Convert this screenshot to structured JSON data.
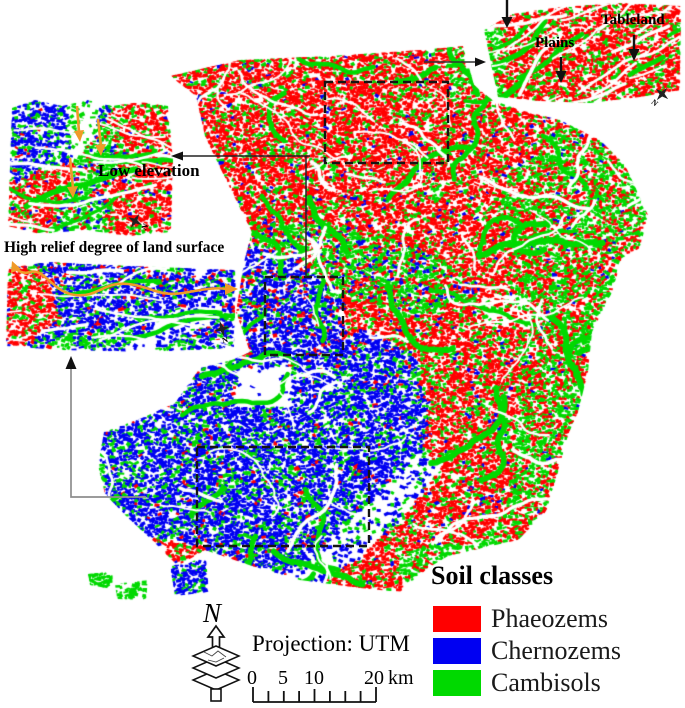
{
  "colors": {
    "phaeozems": "#ff0000",
    "chernozems": "#0000f2",
    "cambisols": "#00d900",
    "annotation": "#f09a28",
    "ink": "#111111",
    "connector_gray": "#8d8d8d"
  },
  "legend": {
    "title": "Soil classes",
    "items": [
      {
        "label": "Phaeozems",
        "color": "#ff0000"
      },
      {
        "label": "Chernozems",
        "color": "#0000f2"
      },
      {
        "label": "Cambisols",
        "color": "#00d900"
      }
    ]
  },
  "callouts": {
    "plains": "Plains",
    "tableland": "Tableland",
    "low_elevation": "Low elevation",
    "high_relief": "High relief degree of land surface"
  },
  "north": {
    "label": "N"
  },
  "inset_north_label": "N",
  "projection": {
    "label": "Projection: UTM"
  },
  "scalebar": {
    "ticks": [
      "0",
      "5",
      "10",
      "20"
    ],
    "unit": "km"
  },
  "map_render": {
    "seed": 11,
    "layers": [
      {
        "name": "main-map",
        "clip": [
          170,
          76,
          240,
          60,
          330,
          56,
          420,
          50,
          463,
          46,
          474,
          85,
          492,
          100,
          520,
          110,
          560,
          120,
          600,
          140,
          625,
          165,
          648,
          215,
          640,
          248,
          622,
          258,
          612,
          292,
          592,
          332,
          588,
          372,
          578,
          412,
          568,
          435,
          558,
          472,
          546,
          512,
          518,
          540,
          482,
          548,
          448,
          556,
          428,
          568,
          400,
          592,
          360,
          588,
          300,
          580,
          252,
          566,
          205,
          550,
          178,
          566,
          152,
          540,
          126,
          516,
          105,
          494,
          98,
          466,
          104,
          432,
          142,
          418,
          175,
          403,
          200,
          368,
          232,
          360,
          250,
          352,
          236,
          312,
          244,
          262,
          252,
          232,
          226,
          180,
          205,
          136,
          196,
          96
        ],
        "zones": [
          {
            "mix": [
              [
                "phaeozems",
                0.58
              ],
              [
                "cambisols",
                0.17
              ],
              [
                "white",
                0.22
              ],
              [
                "chernozems",
                0.03
              ]
            ]
          },
          {
            "poly": [
              448,
              44,
              466,
              48,
              474,
              86,
              452,
              100
            ],
            "mix": [
              [
                "cambisols",
                0.55
              ],
              [
                "phaeozems",
                0.25
              ],
              [
                "white",
                0.2
              ]
            ]
          },
          {
            "poly": [
              548,
              125,
              600,
              142,
              625,
              165,
              648,
              215,
              640,
              248,
              622,
              258,
              612,
              292,
              592,
              332,
              588,
              372,
              578,
              412,
              568,
              435,
              558,
              472,
              546,
              512,
              518,
              540,
              500,
              500,
              512,
              420,
              520,
              340,
              512,
              260,
              500,
              190
            ],
            "mix": [
              [
                "cambisols",
                0.45
              ],
              [
                "phaeozems",
                0.33
              ],
              [
                "white",
                0.2
              ],
              [
                "chernozems",
                0.02
              ]
            ]
          },
          {
            "poly": [
              252,
              230,
              320,
              220,
              390,
              238,
              445,
              260,
              468,
              300,
              430,
              328,
              360,
              300,
              300,
              282,
              246,
              262
            ],
            "mix": [
              [
                "cambisols",
                0.42
              ],
              [
                "phaeozems",
                0.28
              ],
              [
                "chernozems",
                0.12
              ],
              [
                "white",
                0.18
              ]
            ]
          },
          {
            "poly": [
              250,
              240,
              302,
              262,
              345,
              302,
              342,
              358,
              300,
              368,
              252,
              352,
              238,
              310,
              244,
              264
            ],
            "mix": [
              [
                "chernozems",
                0.52
              ],
              [
                "cambisols",
                0.14
              ],
              [
                "phaeozems",
                0.12
              ],
              [
                "white",
                0.22
              ]
            ]
          },
          {
            "poly": [
              100,
              430,
              150,
              414,
              200,
              366,
              252,
              354,
              312,
              360,
              362,
              330,
              422,
              356,
              432,
              420,
              420,
              470,
              382,
              520,
              342,
              560,
              300,
              578,
              250,
              564,
              205,
              548,
              152,
              538,
              112,
              505,
              97,
              464
            ],
            "mix": [
              [
                "chernozems",
                0.56
              ],
              [
                "cambisols",
                0.17
              ],
              [
                "phaeozems",
                0.03
              ],
              [
                "white",
                0.24
              ]
            ]
          },
          {
            "poly": [
              352,
              310,
              420,
              318,
              462,
              295,
              505,
              308,
              520,
              350,
              516,
              450,
              505,
              505,
              480,
              535,
              448,
              552,
              428,
              564,
              404,
              588,
              388,
              540,
              398,
              505,
              420,
              465,
              429,
              420,
              417,
              358,
              374,
              332
            ],
            "mix": [
              [
                "phaeozems",
                0.55
              ],
              [
                "cambisols",
                0.2
              ],
              [
                "white",
                0.22
              ],
              [
                "chernozems",
                0.03
              ]
            ]
          },
          {
            "poly": [
              236,
              368,
              293,
              368,
              293,
              407,
              236,
              407
            ],
            "mix": [
              [
                "white",
                0.97
              ],
              [
                "chernozems",
                0.03
              ]
            ]
          },
          {
            "poly": [
              478,
              290,
              530,
              298,
              534,
              330,
              488,
              326
            ],
            "mix": [
              [
                "white",
                0.65
              ],
              [
                "phaeozems",
                0.22
              ],
              [
                "cambisols",
                0.13
              ]
            ]
          },
          {
            "poly": [
              288,
              576,
              330,
              540,
              380,
              492,
              422,
              448,
              442,
              468,
              402,
              520,
              352,
              564,
              312,
              586
            ],
            "mix": [
              [
                "white",
                0.72
              ],
              [
                "chernozems",
                0.2
              ],
              [
                "cambisols",
                0.08
              ]
            ]
          },
          {
            "poly": [
              398,
              556,
              430,
              545,
              470,
              546,
              500,
              520,
              516,
              545,
              470,
              560,
              428,
              572,
              402,
              590
            ],
            "mix": [
              [
                "cambisols",
                0.6
              ],
              [
                "white",
                0.25
              ],
              [
                "phaeozems",
                0.15
              ]
            ]
          }
        ],
        "streaks": {
          "green": 34,
          "white": 58
        }
      },
      {
        "name": "island-1",
        "clip": [
          88,
          574,
          113,
          571,
          112,
          589,
          90,
          585
        ],
        "zones": [
          {
            "mix": [
              [
                "cambisols",
                0.75
              ],
              [
                "white",
                0.25
              ]
            ]
          }
        ],
        "streaks": {}
      },
      {
        "name": "island-2",
        "clip": [
          115,
          584,
          148,
          580,
          146,
          600,
          117,
          599
        ],
        "zones": [
          {
            "mix": [
              [
                "cambisols",
                0.75
              ],
              [
                "white",
                0.25
              ]
            ]
          }
        ],
        "streaks": {}
      },
      {
        "name": "island-3",
        "clip": [
          170,
          566,
          206,
          558,
          209,
          592,
          175,
          596
        ],
        "zones": [
          {
            "mix": [
              [
                "chernozems",
                0.6
              ],
              [
                "cambisols",
                0.25
              ],
              [
                "white",
                0.15
              ]
            ]
          }
        ],
        "streaks": {}
      },
      {
        "name": "inset-tableland-plains",
        "clip": [
          484,
          30,
          512,
          14,
          560,
          7,
          620,
          3,
          681,
          6,
          680,
          90,
          640,
          97,
          590,
          103,
          540,
          101,
          498,
          97
        ],
        "zones": [
          {
            "mix": [
              [
                "phaeozems",
                0.58
              ],
              [
                "cambisols",
                0.2
              ],
              [
                "white",
                0.22
              ]
            ]
          },
          {
            "poly": [
              482,
              30,
              502,
              26,
              504,
              100,
              486,
              96
            ],
            "mix": [
              [
                "cambisols",
                0.6
              ],
              [
                "phaeozems",
                0.2
              ],
              [
                "white",
                0.2
              ]
            ]
          }
        ],
        "streaks": {
          "white": 16,
          "green": 6,
          "bias": -0.5
        }
      },
      {
        "name": "inset-low-elevation",
        "clip": [
          12,
          108,
          35,
          100,
          62,
          106,
          88,
          100,
          112,
          106,
          140,
          102,
          168,
          106,
          173,
          160,
          171,
          232,
          130,
          236,
          85,
          230,
          40,
          234,
          8,
          226
        ],
        "zones": [
          {
            "mix": [
              [
                "phaeozems",
                0.55
              ],
              [
                "cambisols",
                0.17
              ],
              [
                "white",
                0.26
              ],
              [
                "chernozems",
                0.02
              ]
            ]
          },
          {
            "poly": [
              8,
              100,
              112,
              102,
              100,
              148,
              55,
              168,
              8,
              184
            ],
            "mix": [
              [
                "chernozems",
                0.5
              ],
              [
                "cambisols",
                0.18
              ],
              [
                "white",
                0.3
              ],
              [
                "phaeozems",
                0.02
              ]
            ]
          },
          {
            "poly": [
              52,
              234,
              88,
              120,
              126,
              130,
              102,
              236
            ],
            "mix": [
              [
                "cambisols",
                0.45
              ],
              [
                "white",
                0.3
              ],
              [
                "chernozems",
                0.13
              ],
              [
                "phaeozems",
                0.12
              ]
            ]
          },
          {
            "poly": [
              66,
              104,
              100,
              102,
              92,
              140,
              74,
              170
            ],
            "mix": [
              [
                "white",
                0.7
              ],
              [
                "cambisols",
                0.3
              ]
            ]
          }
        ],
        "streaks": {
          "white": 12,
          "green": 5,
          "bias": 0.05
        }
      },
      {
        "name": "inset-high-relief",
        "clip": [
          8,
          268,
          48,
          262,
          130,
          266,
          236,
          270,
          234,
          348,
          150,
          352,
          60,
          350,
          6,
          346
        ],
        "zones": [
          {
            "mix": [
              [
                "chernozems",
                0.5
              ],
              [
                "cambisols",
                0.17
              ],
              [
                "phaeozems",
                0.07
              ],
              [
                "white",
                0.26
              ]
            ]
          },
          {
            "poly": [
              8,
              268,
              46,
              274,
              60,
              318,
              24,
              348,
              8,
              344
            ],
            "mix": [
              [
                "phaeozems",
                0.58
              ],
              [
                "cambisols",
                0.15
              ],
              [
                "white",
                0.27
              ]
            ]
          },
          {
            "poly": [
              30,
              340,
              120,
              330,
              200,
              340,
              234,
              348,
              150,
              352,
              60,
              350
            ],
            "mix": [
              [
                "cambisols",
                0.4
              ],
              [
                "chernozems",
                0.3
              ],
              [
                "white",
                0.3
              ]
            ]
          },
          {
            "poly": [
              120,
              350,
              200,
              296,
              228,
              312,
              152,
              352
            ],
            "mix": [
              [
                "white",
                0.75
              ],
              [
                "chernozems",
                0.25
              ]
            ]
          }
        ],
        "streaks": {
          "white": 12,
          "green": 4,
          "bias": 0.0
        }
      }
    ]
  }
}
